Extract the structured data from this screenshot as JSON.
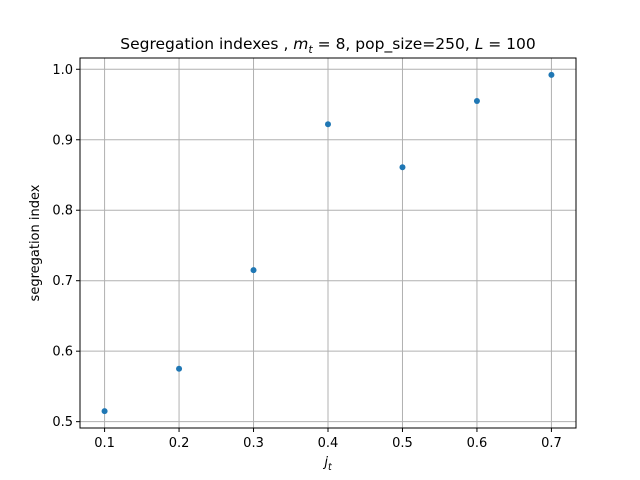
{
  "chart_data": {
    "type": "scatter",
    "title": {
      "pre": "Segregation indexes , ",
      "mt_symbol": "m",
      "mt_sub": "t",
      "mt_eq": " = 8, pop_size=250, ",
      "l_symbol": "L",
      "l_eq": " = 100"
    },
    "xlabel": {
      "symbol": "j",
      "sub": "t"
    },
    "ylabel": "segregation index",
    "x": [
      0.1,
      0.2,
      0.3,
      0.4,
      0.5,
      0.6,
      0.7
    ],
    "y": [
      0.515,
      0.575,
      0.715,
      0.922,
      0.861,
      0.955,
      0.992
    ],
    "xlim": [
      0.067,
      0.733
    ],
    "ylim": [
      0.491,
      1.016
    ],
    "xticks": [
      0.1,
      0.2,
      0.3,
      0.4,
      0.5,
      0.6,
      0.7
    ],
    "xtick_labels": [
      "0.1",
      "0.2",
      "0.3",
      "0.4",
      "0.5",
      "0.6",
      "0.7"
    ],
    "yticks": [
      0.5,
      0.6,
      0.7,
      0.8,
      0.9,
      1.0
    ],
    "ytick_labels": [
      "0.5",
      "0.6",
      "0.7",
      "0.8",
      "0.9",
      "1.0"
    ],
    "grid": true,
    "marker_color": "#1f77b4"
  }
}
